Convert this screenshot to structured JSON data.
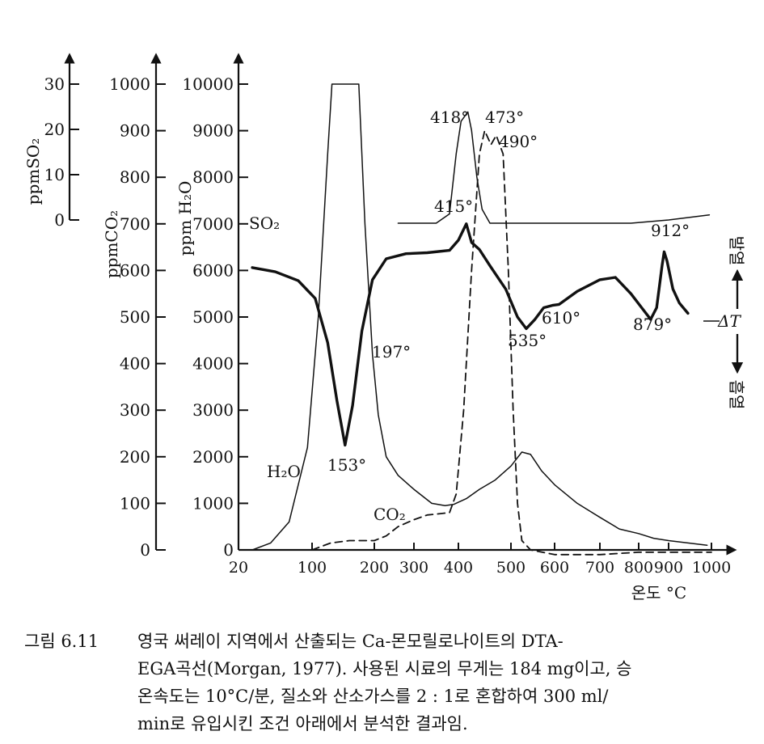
{
  "figure": {
    "axis_labels": {
      "so2": "ppmSO₂",
      "co2": "ppmCO₂",
      "h2o": "ppm H₂O",
      "x": "온도 °C",
      "dT": "ΔT",
      "exo": "발열",
      "endo": "흡열"
    },
    "so2_ticks": [
      "30",
      "20",
      "10",
      "0"
    ],
    "co2_ticks": [
      "1000",
      "900",
      "800",
      "700",
      "600",
      "500",
      "400",
      "300",
      "200",
      "100",
      "0"
    ],
    "h2o_ticks": [
      "10000",
      "9000",
      "8000",
      "7000",
      "6000",
      "5000",
      "4000",
      "3000",
      "2000",
      "1000",
      "0"
    ],
    "x_ticks": [
      "20",
      "100",
      "200",
      "300",
      "400",
      "500",
      "600",
      "700",
      "800",
      "900",
      "1000"
    ],
    "curve_labels": {
      "so2": "SO₂",
      "h2o": "H₂O",
      "co2": "CO₂"
    },
    "annotations": {
      "p418": "418°",
      "p473": "473°",
      "p490": "490°",
      "p415": "415°",
      "p912": "912°",
      "p610": "610°",
      "p879": "879°",
      "p535": "535°",
      "p197": "197°",
      "p153": "153°"
    }
  },
  "caption": {
    "number": "그림 6.11",
    "lines": [
      "영국 써레이 지역에서 산출되는 Ca-몬모릴로나이트의 DTA-",
      "EGA곡선(Morgan, 1977). 사용된 시료의 무게는 184 mg이고, 승",
      "온속도는 10°C/분, 질소와 산소가스를 2 : 1로 혼합하여 300 ml/",
      "min로 유입시킨 조건 아래에서 분석한 결과임."
    ]
  },
  "chart_data": {
    "type": "line",
    "xlabel": "온도 °C",
    "x_ticks": [
      "20",
      "100",
      "200",
      "300",
      "400",
      "500",
      "600",
      "700",
      "800",
      "900",
      "1000"
    ],
    "y_axes": [
      {
        "label": "ppmSO₂",
        "range": [
          0,
          30
        ]
      },
      {
        "label": "ppmCO₂",
        "range": [
          0,
          1000
        ]
      },
      {
        "label": "ppm H₂O",
        "range": [
          0,
          10000
        ]
      }
    ],
    "right_axis": {
      "label": "ΔT",
      "up": "발열",
      "down": "흡열"
    },
    "series": [
      {
        "name": "SO₂",
        "style": "thin",
        "axis": "ppmSO₂",
        "points": [
          [
            260,
            0
          ],
          [
            350,
            0
          ],
          [
            380,
            2
          ],
          [
            395,
            15
          ],
          [
            405,
            22
          ],
          [
            418,
            24
          ],
          [
            425,
            20
          ],
          [
            435,
            10
          ],
          [
            445,
            3
          ],
          [
            460,
            0
          ],
          [
            700,
            0
          ],
          [
            780,
            0
          ],
          [
            900,
            0.7
          ],
          [
            995,
            1.8
          ]
        ]
      },
      {
        "name": "ΔT",
        "style": "bold",
        "axis": "ΔT",
        "points": [
          [
            35,
            606
          ],
          [
            60,
            597
          ],
          [
            85,
            578
          ],
          [
            105,
            540
          ],
          [
            125,
            445
          ],
          [
            140,
            320
          ],
          [
            153,
            225
          ],
          [
            165,
            310
          ],
          [
            180,
            470
          ],
          [
            197,
            580
          ],
          [
            230,
            625
          ],
          [
            280,
            636
          ],
          [
            330,
            638
          ],
          [
            380,
            643
          ],
          [
            400,
            665
          ],
          [
            415,
            700
          ],
          [
            425,
            660
          ],
          [
            440,
            645
          ],
          [
            460,
            610
          ],
          [
            490,
            560
          ],
          [
            515,
            500
          ],
          [
            535,
            475
          ],
          [
            555,
            495
          ],
          [
            575,
            520
          ],
          [
            595,
            525
          ],
          [
            610,
            527
          ],
          [
            650,
            555
          ],
          [
            700,
            580
          ],
          [
            740,
            585
          ],
          [
            780,
            550
          ],
          [
            810,
            520
          ],
          [
            840,
            495
          ],
          [
            860,
            520
          ],
          [
            878,
            610
          ],
          [
            885,
            640
          ],
          [
            895,
            620
          ],
          [
            910,
            560
          ],
          [
            925,
            530
          ],
          [
            945,
            508
          ]
        ]
      },
      {
        "name": "H₂O",
        "style": "thin",
        "axis": "ppm H₂O",
        "points": [
          [
            35,
            0
          ],
          [
            55,
            150
          ],
          [
            75,
            600
          ],
          [
            95,
            2200
          ],
          [
            110,
            5000
          ],
          [
            125,
            8500
          ],
          [
            132,
            10000
          ],
          [
            175,
            10000
          ],
          [
            185,
            7000
          ],
          [
            197,
            4200
          ],
          [
            210,
            2900
          ],
          [
            230,
            2000
          ],
          [
            260,
            1600
          ],
          [
            300,
            1300
          ],
          [
            340,
            1000
          ],
          [
            370,
            950
          ],
          [
            390,
            980
          ],
          [
            415,
            1100
          ],
          [
            440,
            1300
          ],
          [
            470,
            1500
          ],
          [
            500,
            1800
          ],
          [
            525,
            2100
          ],
          [
            545,
            2050
          ],
          [
            570,
            1700
          ],
          [
            600,
            1400
          ],
          [
            650,
            1000
          ],
          [
            700,
            700
          ],
          [
            750,
            450
          ],
          [
            800,
            350
          ],
          [
            850,
            250
          ],
          [
            900,
            200
          ],
          [
            990,
            100
          ]
        ]
      },
      {
        "name": "CO₂",
        "style": "dashed",
        "axis": "ppmCO₂",
        "points": [
          [
            100,
            0
          ],
          [
            130,
            15
          ],
          [
            160,
            20
          ],
          [
            200,
            20
          ],
          [
            230,
            30
          ],
          [
            260,
            50
          ],
          [
            300,
            65
          ],
          [
            330,
            75
          ],
          [
            360,
            78
          ],
          [
            380,
            80
          ],
          [
            395,
            120
          ],
          [
            410,
            300
          ],
          [
            425,
            600
          ],
          [
            440,
            850
          ],
          [
            450,
            900
          ],
          [
            462,
            870
          ],
          [
            472,
            890
          ],
          [
            485,
            850
          ],
          [
            495,
            600
          ],
          [
            505,
            300
          ],
          [
            515,
            100
          ],
          [
            525,
            20
          ],
          [
            545,
            0
          ],
          [
            600,
            -10
          ],
          [
            700,
            -10
          ],
          [
            800,
            -5
          ],
          [
            1000,
            -5
          ]
        ]
      }
    ]
  }
}
